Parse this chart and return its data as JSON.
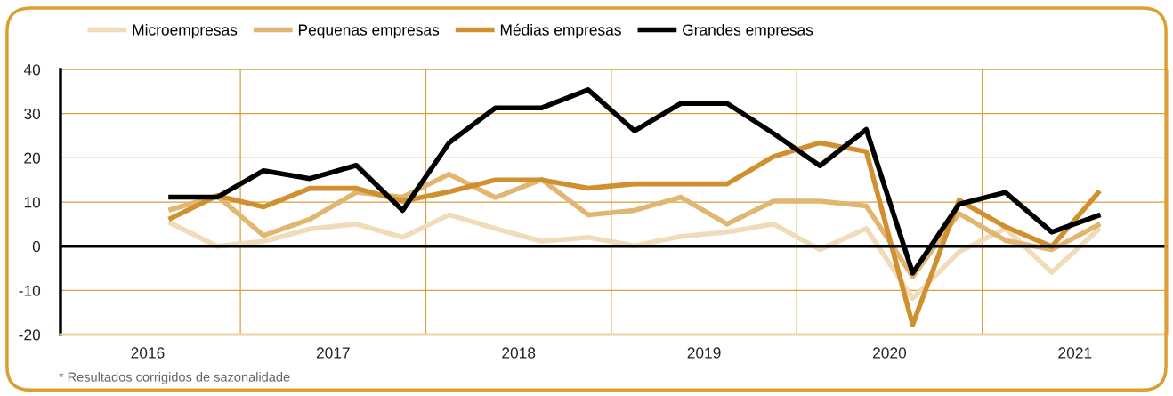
{
  "chart_data": {
    "type": "line",
    "x": [
      2016.625,
      2016.875,
      2017.125,
      2017.375,
      2017.625,
      2017.875,
      2018.125,
      2018.375,
      2018.625,
      2018.875,
      2019.125,
      2019.375,
      2019.625,
      2019.875,
      2020.125,
      2020.375,
      2020.625,
      2020.875,
      2021.125,
      2021.375,
      2021.625
    ],
    "series": [
      {
        "name": "Microempresas",
        "color": "#f0dcb8",
        "values": [
          5.2,
          0.0,
          1.1,
          3.9,
          5.0,
          2.0,
          7.1,
          4.0,
          1.1,
          2.0,
          0.1,
          2.2,
          3.2,
          5.0,
          -0.8,
          4.0,
          -11.8,
          -1.3,
          4.0,
          -5.9,
          3.7
        ]
      },
      {
        "name": "Pequenas empresas",
        "color": "#e0b670",
        "values": [
          8.3,
          11.4,
          2.4,
          6.1,
          12.2,
          11.1,
          16.3,
          11.0,
          15.1,
          7.1,
          8.1,
          11.1,
          5.0,
          10.2,
          10.2,
          9.1,
          -6.9,
          7.4,
          1.3,
          -0.8,
          4.8
        ]
      },
      {
        "name": "Médias empresas",
        "color": "#d09030",
        "values": [
          6.3,
          11.4,
          8.9,
          13.1,
          13.1,
          10.2,
          12.3,
          15.0,
          15.0,
          13.1,
          14.1,
          14.1,
          14.1,
          20.3,
          23.4,
          21.4,
          -17.8,
          10.4,
          4.4,
          -0.1,
          12.1
        ]
      },
      {
        "name": "Grandes empresas",
        "color": "#000000",
        "values": [
          11.1,
          11.1,
          17.1,
          15.3,
          18.3,
          8.1,
          23.4,
          31.3,
          31.3,
          35.4,
          26.1,
          32.3,
          32.3,
          25.5,
          18.2,
          26.4,
          -6.1,
          9.5,
          12.2,
          3.2,
          6.9
        ]
      }
    ],
    "xlim": [
      2016.03,
      2022.0
    ],
    "xticks": [
      {
        "value": 2016.5,
        "label": "2016"
      },
      {
        "value": 2017.0,
        "label": null
      },
      {
        "value": 2017.5,
        "label": "2017"
      },
      {
        "value": 2018.0,
        "label": null
      },
      {
        "value": 2018.5,
        "label": "2018"
      },
      {
        "value": 2019.0,
        "label": null
      },
      {
        "value": 2019.5,
        "label": "2019"
      },
      {
        "value": 2020.0,
        "label": null
      },
      {
        "value": 2020.5,
        "label": "2020"
      },
      {
        "value": 2021.0,
        "label": null
      },
      {
        "value": 2021.5,
        "label": "2021"
      },
      {
        "value": 2022.0,
        "label": null
      }
    ],
    "ylim": [
      -20,
      40
    ],
    "yticks": [
      -20,
      -10,
      0,
      10,
      20,
      30,
      40
    ],
    "ref_lines": [
      {
        "axis": "y",
        "value": 0,
        "color": "#000000"
      }
    ],
    "annotations": [
      "* Resultados corrigidos de sazonalidade"
    ],
    "grid": true,
    "legend": "top left",
    "marker": "none",
    "line_style": "solid"
  }
}
